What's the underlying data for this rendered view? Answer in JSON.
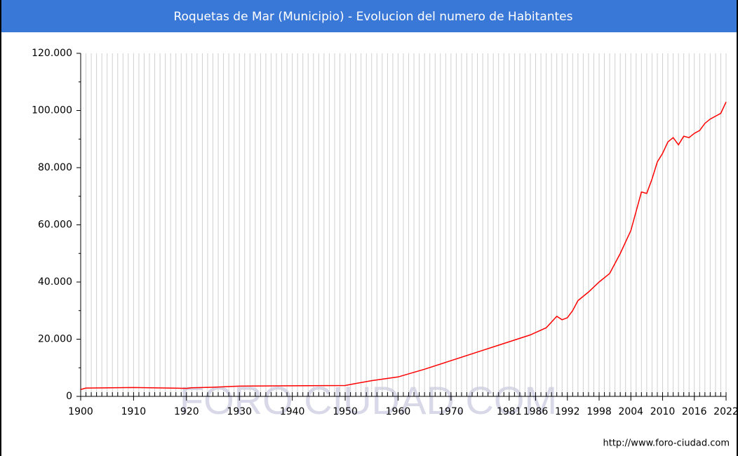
{
  "chart_data": {
    "type": "line",
    "title": "Roquetas de Mar (Municipio) - Evolucion del numero de Habitantes",
    "watermark": "FORO CIUDAD.COM",
    "source": "http://www.foro-ciudad.com",
    "x": [
      1900,
      1901,
      1910,
      1920,
      1921,
      1925,
      1930,
      1940,
      1950,
      1952,
      1955,
      1960,
      1965,
      1970,
      1975,
      1980,
      1985,
      1988,
      1990,
      1991,
      1992,
      1993,
      1994,
      1996,
      1998,
      2000,
      2002,
      2004,
      2006,
      2007,
      2008,
      2009,
      2010,
      2011,
      2012,
      2013,
      2014,
      2015,
      2016,
      2017,
      2018,
      2019,
      2020,
      2021,
      2022
    ],
    "series": [
      {
        "name": "Habitantes",
        "color": "#ff0000",
        "values": [
          2400,
          2900,
          3100,
          2800,
          3000,
          3200,
          3600,
          3700,
          3800,
          4500,
          5500,
          6800,
          9500,
          12500,
          15500,
          18500,
          21500,
          24000,
          28000,
          26800,
          27500,
          30000,
          33500,
          36500,
          40000,
          43000,
          50000,
          58000,
          71500,
          71000,
          76000,
          82000,
          85000,
          89000,
          90500,
          88000,
          91000,
          90500,
          92000,
          93000,
          95500,
          97000,
          98000,
          99000,
          103000
        ]
      }
    ],
    "xlim": [
      1900,
      2022
    ],
    "xticks": [
      1900,
      1910,
      1920,
      1930,
      1940,
      1950,
      1960,
      1970,
      1981,
      1986,
      1992,
      1998,
      2004,
      2010,
      2016,
      2022
    ],
    "ylim": [
      0,
      120000
    ],
    "yticks": [
      0,
      {
        "value": 20000,
        "label": "20.000"
      },
      {
        "value": 40000,
        "label": "40.000"
      },
      {
        "value": 60000,
        "label": "60.000"
      },
      {
        "value": 80000,
        "label": "80.000"
      },
      {
        "value": 100000,
        "label": "100.000"
      },
      {
        "value": 120000,
        "label": "120.000"
      }
    ],
    "grid": true
  }
}
